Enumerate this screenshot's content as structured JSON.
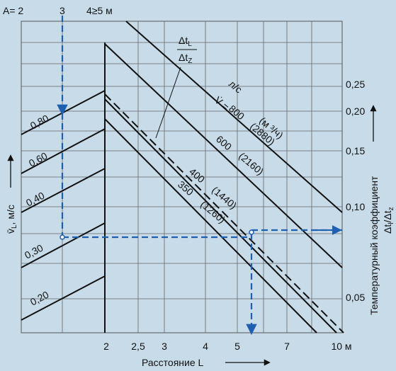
{
  "top_labels": [
    "A= 2",
    "3",
    "4≥5 м"
  ],
  "right_ticks": [
    "0,25",
    "0,20",
    "0,15",
    "0,10",
    "0,05"
  ],
  "bottom_ticks": [
    "2",
    "2,5",
    "3",
    "4",
    "5",
    "7",
    "10 м"
  ],
  "x_label": "Расстояние L",
  "y_label": {
    "base": "v̄",
    "sub": "L",
    "unit": ", м/с"
  },
  "right_label": "Температурный коэффициент",
  "right_label2": {
    "a": "Δt",
    "a_sub": "l",
    "sep": "/Δt",
    "b_sub": "z"
  },
  "speed_labels": [
    "0,80",
    "0,60",
    "0,40",
    "0,30",
    "0,20"
  ],
  "flow_header": {
    "v": "V̇ =",
    "unit": "л/с",
    "unit2": "(м ³/ч)"
  },
  "flow_labels": [
    {
      "ls": "800",
      "m3h": "(2880)"
    },
    {
      "ls": "600",
      "m3h": "(2160)"
    },
    {
      "ls": "400",
      "m3h": "(1440)"
    },
    {
      "ls": "350",
      "m3h": "(1260)"
    }
  ],
  "dt_label": {
    "top": "Δt",
    "top_sub": "L",
    "bottom": "Δt",
    "bottom_sub": "Z"
  }
}
